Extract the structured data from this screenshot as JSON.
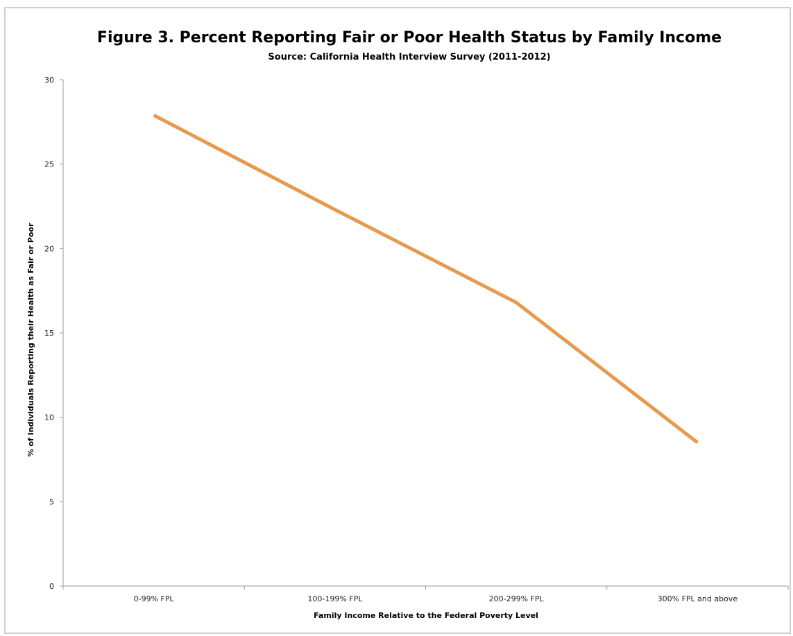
{
  "colors": {
    "series": "#e59a4d",
    "axis": "#9a9a9a",
    "border": "#cfcfcf"
  },
  "chart_data": {
    "type": "line",
    "title": "Figure 3. Percent Reporting Fair or Poor Health Status by Family Income",
    "subtitle": "Source: California Health Interview Survey (2011-2012)",
    "xlabel": "Family Income Relative to the Federal Poverty Level",
    "ylabel": "% of Individuals Reporting their Health as Fair or Poor",
    "categories": [
      "0-99% FPL",
      "100-199% FPL",
      "200-299% FPL",
      "300% FPL and above"
    ],
    "series": [
      {
        "values": [
          27.9,
          22.3,
          16.8,
          8.5
        ]
      }
    ],
    "ylim": [
      0,
      30
    ],
    "yticks": [
      0,
      5,
      10,
      15,
      20,
      25,
      30
    ],
    "grid": false,
    "legend": "none"
  }
}
